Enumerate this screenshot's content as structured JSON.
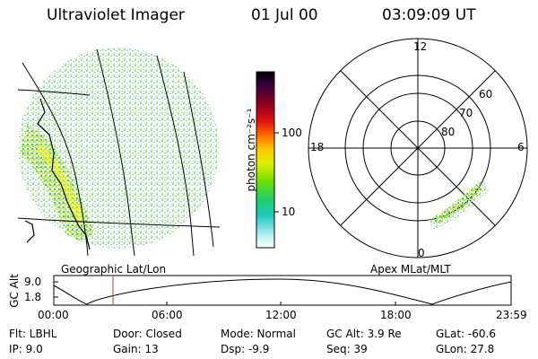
{
  "header": {
    "instrument": "Ultraviolet Imager",
    "date": "01 Jul 00",
    "time": "03:09:09 UT"
  },
  "colorbar": {
    "label": "photon cm⁻²s⁻¹",
    "ticks": [
      "100",
      "10"
    ],
    "colors": [
      "#000000",
      "#2a0030",
      "#5a0050",
      "#8a0010",
      "#c00010",
      "#ff1a00",
      "#ff7a00",
      "#ffd000",
      "#c8ff00",
      "#5af000",
      "#00d070",
      "#00c8c0",
      "#a0f0f0",
      "#ffffff"
    ]
  },
  "left_map": {
    "caption": "Geographic Lat/Lon"
  },
  "polar_plot": {
    "caption": "Apex MLat/MLT",
    "mlt_labels": {
      "top": "12",
      "left": "18",
      "right": "6",
      "bottom": "0"
    },
    "lat_labels": [
      "60",
      "70",
      "80"
    ]
  },
  "altitude_strip": {
    "ylabel": "GC Alt",
    "yticks": [
      "9.0",
      "1.8"
    ],
    "xticks": [
      "00:00",
      "06:00",
      "12:00",
      "18:00",
      "23:59"
    ],
    "marker_color": "#cc3333"
  },
  "info": {
    "flt": "Flt: LBHL",
    "ip": "IP:  9.0",
    "door": "Door: Closed",
    "gain": "Gain: 13",
    "mode": "Mode: Normal",
    "dsp": "Dsp:   -9.9",
    "gc_alt": "GC Alt: 3.9 Re",
    "seq": "Seq: 39",
    "glat": "GLat: -60.6",
    "glon": "GLon:  27.8"
  }
}
